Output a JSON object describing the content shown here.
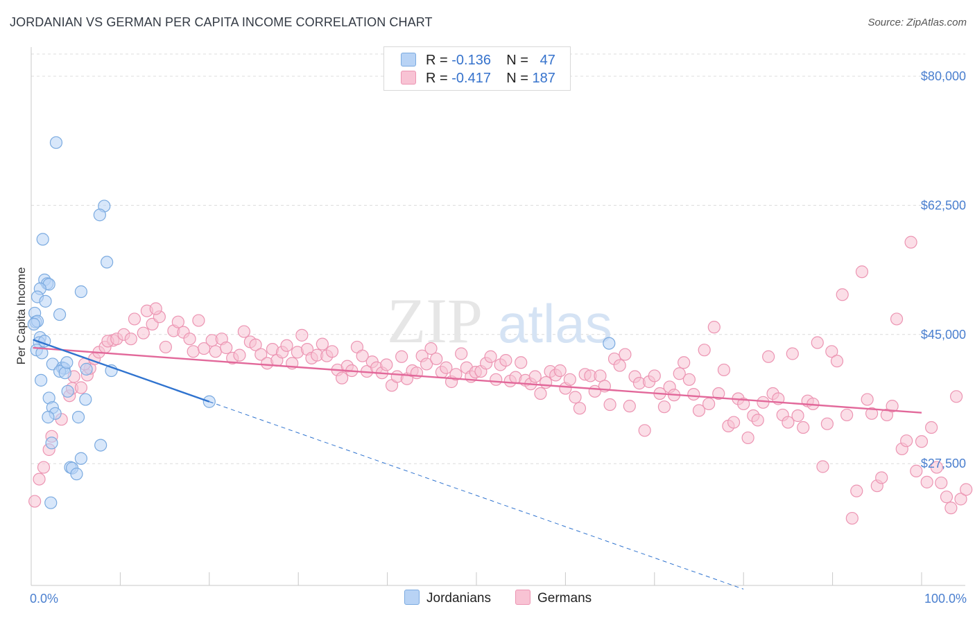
{
  "title": "JORDANIAN VS GERMAN PER CAPITA INCOME CORRELATION CHART",
  "source": "Source: ZipAtlas.com",
  "watermark": {
    "zip": "ZIP",
    "atlas": "atlas"
  },
  "colors": {
    "jordanian_fill": "#b8d3f5",
    "jordanian_stroke": "#7aaae0",
    "jordanian_line": "#2f73cf",
    "german_fill": "#f8c3d4",
    "german_stroke": "#ec94b2",
    "german_line": "#e2689a",
    "axis_label": "#4a7fcf",
    "grid": "#dcdcdc"
  },
  "legend": {
    "rows": [
      {
        "r_label": "R = ",
        "r_value": "-0.136",
        "n_label": "N = ",
        "n_value": "47"
      },
      {
        "r_label": "R = ",
        "r_value": "-0.417",
        "n_label": "N = ",
        "n_value": "187"
      }
    ],
    "bottom": [
      "Jordanians",
      "Germans"
    ]
  },
  "chart_data": {
    "type": "scatter",
    "title": "JORDANIAN VS GERMAN PER CAPITA INCOME CORRELATION CHART",
    "xlabel": "",
    "ylabel": "Per Capita Income",
    "xlim": [
      0,
      100
    ],
    "ylim": [
      11000,
      83000
    ],
    "x_tick_labels": [
      "0.0%",
      "100.0%"
    ],
    "y_ticks": [
      27500,
      45000,
      62500,
      80000
    ],
    "y_tick_labels": [
      "$27,500",
      "$45,000",
      "$62,500",
      "$80,000"
    ],
    "series": [
      {
        "name": "Jordanians",
        "r": -0.136,
        "n": 47,
        "trend": {
          "x0": 0.2,
          "y0": 44300,
          "x1": 20,
          "y1": 35900,
          "dash_to_x": 80,
          "dash_to_y": 10500
        },
        "points": [
          [
            2.8,
            71000
          ],
          [
            8.2,
            62400
          ],
          [
            7.7,
            61200
          ],
          [
            1.3,
            57900
          ],
          [
            8.5,
            54800
          ],
          [
            1.5,
            52400
          ],
          [
            1.8,
            51900
          ],
          [
            2.0,
            51800
          ],
          [
            1.0,
            51200
          ],
          [
            5.6,
            50800
          ],
          [
            0.7,
            50100
          ],
          [
            1.6,
            49500
          ],
          [
            3.2,
            47700
          ],
          [
            0.4,
            47900
          ],
          [
            0.5,
            46700
          ],
          [
            0.7,
            46800
          ],
          [
            0.3,
            46400
          ],
          [
            1.0,
            44600
          ],
          [
            0.9,
            43900
          ],
          [
            0.6,
            42900
          ],
          [
            1.2,
            42500
          ],
          [
            2.4,
            41000
          ],
          [
            3.5,
            40500
          ],
          [
            3.7,
            40400
          ],
          [
            3.2,
            40000
          ],
          [
            3.8,
            39800
          ],
          [
            1.1,
            38800
          ],
          [
            4.1,
            37300
          ],
          [
            2.0,
            36400
          ],
          [
            2.4,
            35100
          ],
          [
            2.7,
            34300
          ],
          [
            1.9,
            33800
          ],
          [
            5.3,
            33800
          ],
          [
            6.1,
            36200
          ],
          [
            7.8,
            30000
          ],
          [
            2.3,
            30300
          ],
          [
            5.6,
            28200
          ],
          [
            4.4,
            27000
          ],
          [
            4.6,
            26900
          ],
          [
            5.1,
            26100
          ],
          [
            2.2,
            22200
          ],
          [
            6.2,
            40300
          ],
          [
            9.0,
            40100
          ],
          [
            20.0,
            35900
          ],
          [
            64.9,
            43800
          ],
          [
            1.5,
            44100
          ],
          [
            4.0,
            41200
          ]
        ]
      },
      {
        "name": "Germans",
        "r": -0.417,
        "n": 187,
        "trend": {
          "x0": 0.2,
          "y0": 43200,
          "x1": 100,
          "y1": 34400
        },
        "points": [
          [
            0.4,
            22400
          ],
          [
            0.9,
            25400
          ],
          [
            1.4,
            27000
          ],
          [
            2.0,
            29400
          ],
          [
            2.3,
            31200
          ],
          [
            3.4,
            33500
          ],
          [
            4.3,
            36700
          ],
          [
            4.6,
            37700
          ],
          [
            5.6,
            37800
          ],
          [
            4.8,
            39300
          ],
          [
            6.3,
            39500
          ],
          [
            6.6,
            40400
          ],
          [
            6.0,
            41000
          ],
          [
            7.1,
            41700
          ],
          [
            7.6,
            42600
          ],
          [
            8.3,
            43300
          ],
          [
            9.2,
            44200
          ],
          [
            8.6,
            44100
          ],
          [
            9.6,
            44400
          ],
          [
            10.4,
            45000
          ],
          [
            11.2,
            44400
          ],
          [
            11.6,
            47100
          ],
          [
            12.6,
            45200
          ],
          [
            13.0,
            48200
          ],
          [
            13.6,
            46400
          ],
          [
            14.4,
            47400
          ],
          [
            14.0,
            48500
          ],
          [
            15.1,
            43300
          ],
          [
            16.0,
            45500
          ],
          [
            16.5,
            46700
          ],
          [
            17.1,
            45300
          ],
          [
            17.8,
            44400
          ],
          [
            18.2,
            42700
          ],
          [
            18.8,
            46900
          ],
          [
            19.4,
            43100
          ],
          [
            20.3,
            44200
          ],
          [
            20.7,
            42700
          ],
          [
            21.4,
            44400
          ],
          [
            21.9,
            43200
          ],
          [
            22.6,
            41800
          ],
          [
            23.4,
            42200
          ],
          [
            23.9,
            45400
          ],
          [
            24.6,
            44000
          ],
          [
            25.2,
            43600
          ],
          [
            25.8,
            42300
          ],
          [
            26.5,
            41100
          ],
          [
            27.1,
            43000
          ],
          [
            27.6,
            41500
          ],
          [
            28.2,
            42600
          ],
          [
            28.7,
            43500
          ],
          [
            29.3,
            41100
          ],
          [
            29.9,
            42600
          ],
          [
            30.4,
            44900
          ],
          [
            31.0,
            43000
          ],
          [
            31.5,
            41800
          ],
          [
            32.1,
            42200
          ],
          [
            32.7,
            43700
          ],
          [
            33.2,
            42100
          ],
          [
            33.8,
            42700
          ],
          [
            34.4,
            40200
          ],
          [
            34.9,
            39100
          ],
          [
            35.5,
            40700
          ],
          [
            36.0,
            40100
          ],
          [
            36.6,
            43300
          ],
          [
            37.2,
            42100
          ],
          [
            37.7,
            40000
          ],
          [
            38.3,
            41300
          ],
          [
            38.8,
            40500
          ],
          [
            39.4,
            39800
          ],
          [
            39.9,
            40900
          ],
          [
            40.5,
            38100
          ],
          [
            41.1,
            39300
          ],
          [
            41.6,
            42000
          ],
          [
            42.2,
            39000
          ],
          [
            42.8,
            40100
          ],
          [
            43.3,
            39800
          ],
          [
            43.9,
            42100
          ],
          [
            44.4,
            41000
          ],
          [
            44.9,
            43100
          ],
          [
            45.5,
            41700
          ],
          [
            46.1,
            39900
          ],
          [
            46.6,
            40500
          ],
          [
            47.2,
            38600
          ],
          [
            47.7,
            39600
          ],
          [
            48.3,
            42400
          ],
          [
            48.9,
            40500
          ],
          [
            49.4,
            39300
          ],
          [
            49.9,
            39900
          ],
          [
            50.5,
            40000
          ],
          [
            51.1,
            41100
          ],
          [
            51.6,
            42000
          ],
          [
            52.2,
            38900
          ],
          [
            52.7,
            40900
          ],
          [
            53.3,
            41500
          ],
          [
            53.8,
            38700
          ],
          [
            54.4,
            39200
          ],
          [
            55.0,
            41200
          ],
          [
            55.5,
            38800
          ],
          [
            56.1,
            38300
          ],
          [
            56.6,
            39300
          ],
          [
            57.2,
            37000
          ],
          [
            57.8,
            38500
          ],
          [
            58.3,
            40000
          ],
          [
            58.9,
            39500
          ],
          [
            59.4,
            40100
          ],
          [
            60.0,
            37700
          ],
          [
            60.5,
            38900
          ],
          [
            61.1,
            36500
          ],
          [
            61.6,
            35000
          ],
          [
            62.2,
            39600
          ],
          [
            62.8,
            39400
          ],
          [
            63.3,
            37300
          ],
          [
            63.9,
            39400
          ],
          [
            64.4,
            38000
          ],
          [
            65.0,
            35500
          ],
          [
            65.5,
            41700
          ],
          [
            66.1,
            40800
          ],
          [
            66.7,
            42300
          ],
          [
            67.2,
            35300
          ],
          [
            67.8,
            39300
          ],
          [
            68.3,
            38400
          ],
          [
            68.9,
            32000
          ],
          [
            69.4,
            38600
          ],
          [
            70.0,
            39400
          ],
          [
            70.6,
            37000
          ],
          [
            71.1,
            35200
          ],
          [
            71.7,
            37900
          ],
          [
            72.2,
            36800
          ],
          [
            72.8,
            39700
          ],
          [
            73.3,
            41200
          ],
          [
            73.9,
            38900
          ],
          [
            74.4,
            36900
          ],
          [
            75.0,
            34700
          ],
          [
            75.6,
            42900
          ],
          [
            76.1,
            35600
          ],
          [
            76.7,
            46000
          ],
          [
            77.2,
            37000
          ],
          [
            77.8,
            40200
          ],
          [
            78.3,
            32600
          ],
          [
            78.9,
            33100
          ],
          [
            79.4,
            36300
          ],
          [
            80.0,
            35600
          ],
          [
            80.5,
            31000
          ],
          [
            81.1,
            34000
          ],
          [
            81.6,
            33400
          ],
          [
            82.2,
            35800
          ],
          [
            82.8,
            42000
          ],
          [
            83.3,
            37000
          ],
          [
            83.9,
            36300
          ],
          [
            84.4,
            34100
          ],
          [
            85.0,
            33100
          ],
          [
            85.5,
            42400
          ],
          [
            86.1,
            34000
          ],
          [
            86.7,
            32400
          ],
          [
            87.2,
            36000
          ],
          [
            87.8,
            35600
          ],
          [
            88.3,
            43900
          ],
          [
            88.9,
            27100
          ],
          [
            89.4,
            32900
          ],
          [
            89.9,
            42700
          ],
          [
            90.5,
            41400
          ],
          [
            91.1,
            50400
          ],
          [
            91.6,
            34100
          ],
          [
            92.2,
            20100
          ],
          [
            92.7,
            23800
          ],
          [
            93.3,
            53500
          ],
          [
            93.9,
            36200
          ],
          [
            94.4,
            34300
          ],
          [
            95.0,
            24500
          ],
          [
            95.5,
            25600
          ],
          [
            96.1,
            34100
          ],
          [
            96.7,
            35300
          ],
          [
            97.2,
            47100
          ],
          [
            97.8,
            29500
          ],
          [
            98.3,
            30600
          ],
          [
            98.8,
            57500
          ],
          [
            99.4,
            26500
          ],
          [
            100.0,
            30500
          ],
          [
            100.6,
            25000
          ],
          [
            101.1,
            32400
          ],
          [
            101.7,
            27000
          ],
          [
            102.2,
            24900
          ],
          [
            102.8,
            23000
          ],
          [
            103.3,
            21500
          ],
          [
            103.9,
            36600
          ],
          [
            104.4,
            22700
          ],
          [
            105.0,
            24000
          ]
        ]
      }
    ]
  }
}
